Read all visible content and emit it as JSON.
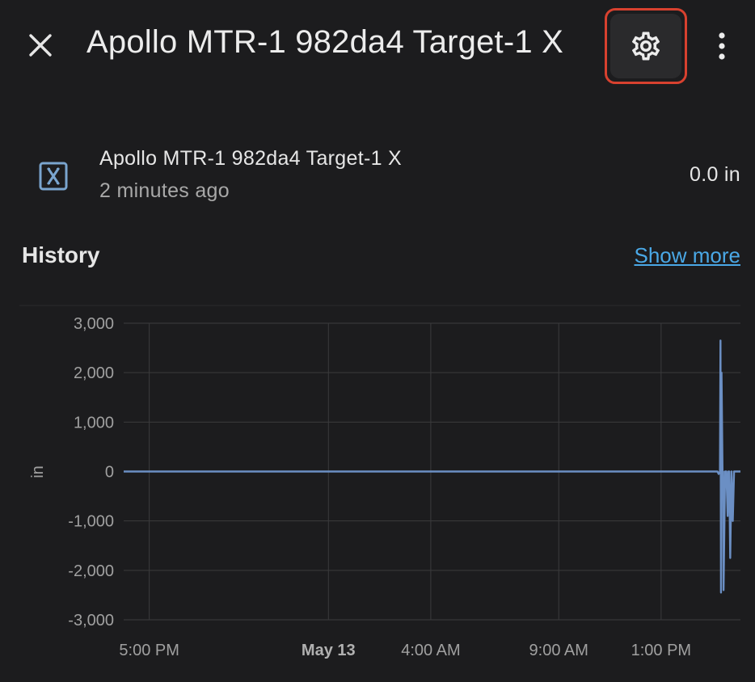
{
  "header": {
    "close_icon": "close-icon",
    "title": "Apollo MTR-1 982da4 Target-1 X",
    "settings_icon": "gear-icon",
    "menu_icon": "more-vert-icon",
    "highlight_color": "#d8412f"
  },
  "entity": {
    "icon": "axis-x-icon",
    "name": "Apollo MTR-1 982da4 Target-1 X",
    "last_changed": "2 minutes ago",
    "state": "0.0 in"
  },
  "history": {
    "title": "History",
    "show_more": "Show more"
  },
  "chart_data": {
    "type": "line",
    "ylabel": "in",
    "ylim": [
      -3000,
      3000
    ],
    "y_ticks": [
      "3,000",
      "2,000",
      "1,000",
      "0",
      "-1,000",
      "-2,000",
      "-3,000"
    ],
    "y_tick_values": [
      3000,
      2000,
      1000,
      0,
      -1000,
      -2000,
      -3000
    ],
    "x_ticks": [
      "5:00 PM",
      "May 13",
      "4:00 AM",
      "9:00 AM",
      "1:00 PM"
    ],
    "x_tick_hours": [
      17,
      24,
      28,
      33,
      37
    ],
    "x_range_hours": [
      16,
      40.1
    ],
    "grid": true,
    "series_color": "#6b8fc4",
    "series": [
      {
        "name": "",
        "x": [
          16,
          39.2,
          39.25,
          39.3,
          39.32,
          39.34,
          39.36,
          39.4,
          39.42,
          39.44,
          39.5,
          39.55,
          39.6,
          39.63,
          39.66,
          39.7,
          39.75,
          39.8,
          39.85,
          39.9,
          39.92,
          40.0,
          40.1
        ],
        "y": [
          0,
          0,
          -50,
          0,
          2650,
          -2450,
          2000,
          -50,
          0,
          -2400,
          0,
          0,
          -900,
          0,
          0,
          -1750,
          0,
          -1000,
          0,
          0,
          0,
          0,
          0
        ]
      }
    ]
  }
}
